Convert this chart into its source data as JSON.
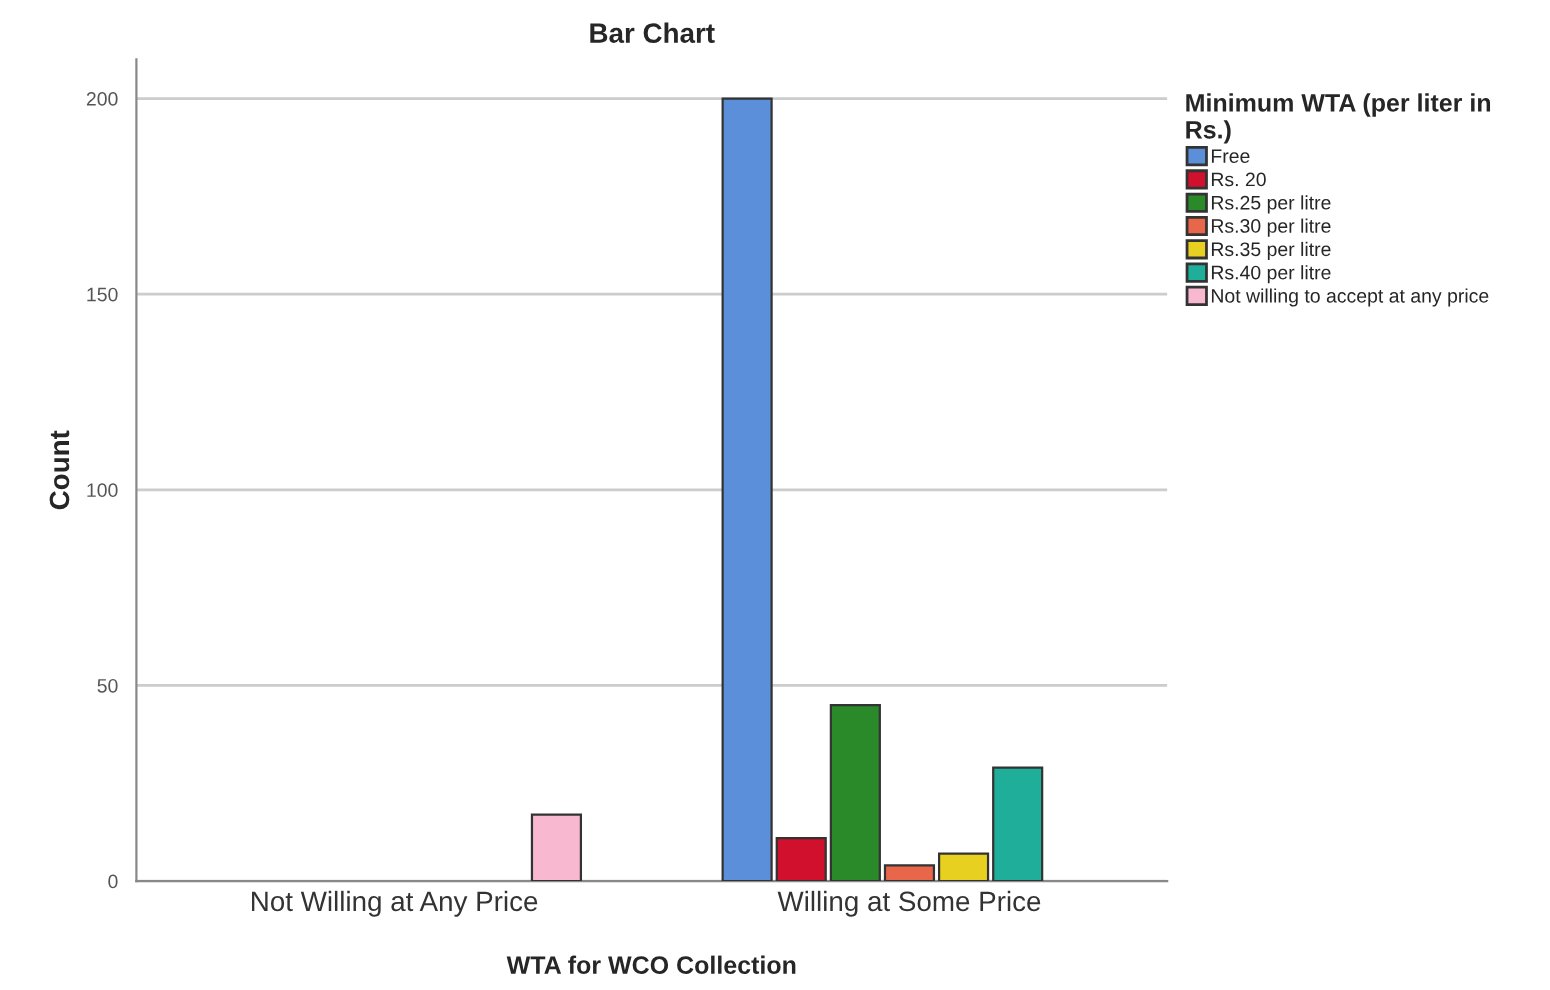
{
  "chart_data": {
    "type": "bar",
    "title": "Bar Chart",
    "xlabel": "WTA for WCO Collection",
    "ylabel": "Count",
    "legend_title": "Minimum WTA (per liter in Rs.)",
    "categories": [
      "Not Willing at Any Price",
      "Willing at Some Price"
    ],
    "series": [
      {
        "name": "Free",
        "color": "#5b8fd9",
        "values": [
          null,
          200
        ]
      },
      {
        "name": "Rs. 20",
        "color": "#d0102c",
        "values": [
          null,
          11
        ]
      },
      {
        "name": "Rs.25 per litre",
        "color": "#2a8a2a",
        "values": [
          null,
          45
        ]
      },
      {
        "name": "Rs.30 per litre",
        "color": "#e8674a",
        "values": [
          null,
          4
        ]
      },
      {
        "name": "Rs.35 per litre",
        "color": "#e8d020",
        "values": [
          null,
          7
        ]
      },
      {
        "name": "Rs.40 per litre",
        "color": "#1fae9a",
        "values": [
          null,
          29
        ]
      },
      {
        "name": "Not willing to accept at any price",
        "color": "#f7b8d0",
        "values": [
          17,
          null
        ]
      }
    ],
    "ylim": [
      0,
      210
    ],
    "yticks": [
      0,
      50,
      100,
      150,
      200
    ],
    "grid": "y",
    "legend": "right"
  }
}
